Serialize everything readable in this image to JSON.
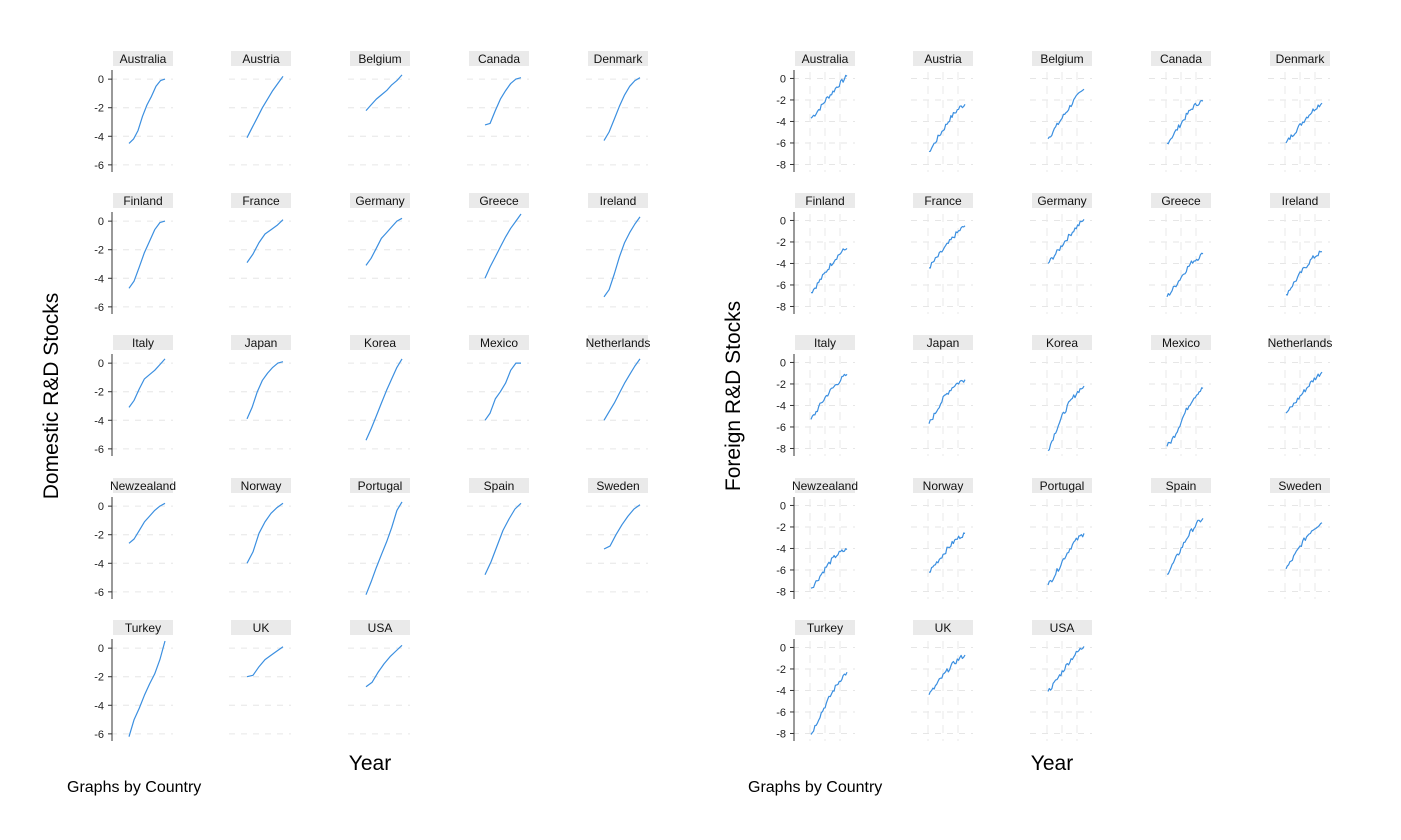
{
  "chart_data": [
    {
      "type": "line",
      "subplot_layout": "small multiples, 5 columns",
      "ylabel": "Domestic R&D Stocks",
      "xlabel": "Year",
      "note": "Graphs by Country",
      "ylim": [
        -6.5,
        0.5
      ],
      "yticks": [
        0,
        -2,
        -4,
        -6
      ],
      "grid": false,
      "line_color": "#3b8fe0",
      "shape": "smooth",
      "series": [
        {
          "name": "Australia",
          "values": [
            -4.5,
            -4.2,
            -3.6,
            -2.6,
            -1.8,
            -1.2,
            -0.5,
            -0.1,
            0.0
          ]
        },
        {
          "name": "Austria",
          "values": [
            -4.1,
            -3.4,
            -2.7,
            -2.0,
            -1.4,
            -0.8,
            -0.3,
            0.2
          ]
        },
        {
          "name": "Belgium",
          "values": [
            -2.2,
            -1.8,
            -1.4,
            -1.1,
            -0.8,
            -0.4,
            -0.1,
            0.3
          ]
        },
        {
          "name": "Canada",
          "values": [
            -3.2,
            -3.1,
            -2.2,
            -1.4,
            -0.8,
            -0.3,
            0.0,
            0.1
          ]
        },
        {
          "name": "Denmark",
          "values": [
            -4.3,
            -3.7,
            -2.8,
            -1.9,
            -1.1,
            -0.5,
            -0.1,
            0.1
          ]
        },
        {
          "name": "Finland",
          "values": [
            -4.7,
            -4.2,
            -3.2,
            -2.2,
            -1.4,
            -0.6,
            -0.1,
            0.0
          ]
        },
        {
          "name": "France",
          "values": [
            -2.9,
            -2.3,
            -1.5,
            -0.9,
            -0.6,
            -0.3,
            0.1
          ]
        },
        {
          "name": "Germany",
          "values": [
            -3.1,
            -2.6,
            -1.9,
            -1.2,
            -0.8,
            -0.4,
            0.0,
            0.2
          ]
        },
        {
          "name": "Greece",
          "values": [
            -4.0,
            -3.2,
            -2.5,
            -1.8,
            -1.1,
            -0.5,
            0.0,
            0.5
          ]
        },
        {
          "name": "Ireland",
          "values": [
            -5.3,
            -4.8,
            -3.7,
            -2.5,
            -1.5,
            -0.8,
            -0.2,
            0.3
          ]
        },
        {
          "name": "Italy",
          "values": [
            -3.1,
            -2.6,
            -1.8,
            -1.1,
            -0.8,
            -0.5,
            -0.1,
            0.3
          ]
        },
        {
          "name": "Japan",
          "values": [
            -3.9,
            -3.1,
            -2.0,
            -1.2,
            -0.7,
            -0.3,
            0.0,
            0.1
          ]
        },
        {
          "name": "Korea",
          "values": [
            -5.4,
            -4.6,
            -3.7,
            -2.8,
            -1.9,
            -1.1,
            -0.3,
            0.3
          ]
        },
        {
          "name": "Mexico",
          "values": [
            -4.0,
            -3.5,
            -2.5,
            -2.0,
            -1.4,
            -0.5,
            0.0,
            0.0
          ]
        },
        {
          "name": "Netherlands",
          "values": [
            -4.0,
            -3.4,
            -2.8,
            -2.1,
            -1.4,
            -0.8,
            -0.2,
            0.3
          ]
        },
        {
          "name": "Newzealand",
          "values": [
            -2.6,
            -2.3,
            -1.7,
            -1.1,
            -0.7,
            -0.3,
            0.0,
            0.2
          ]
        },
        {
          "name": "Norway",
          "values": [
            -4.0,
            -3.2,
            -1.9,
            -1.1,
            -0.5,
            -0.1,
            0.2
          ]
        },
        {
          "name": "Portugal",
          "values": [
            -6.2,
            -5.3,
            -4.3,
            -3.4,
            -2.5,
            -1.5,
            -0.3,
            0.3
          ]
        },
        {
          "name": "Spain",
          "values": [
            -4.8,
            -3.9,
            -2.8,
            -1.7,
            -0.9,
            -0.2,
            0.2
          ]
        },
        {
          "name": "Sweden",
          "values": [
            -3.0,
            -2.8,
            -2.0,
            -1.3,
            -0.7,
            -0.2,
            0.1
          ]
        },
        {
          "name": "Turkey",
          "values": [
            -6.2,
            -5.0,
            -4.2,
            -3.3,
            -2.5,
            -1.8,
            -0.8,
            0.5
          ]
        },
        {
          "name": "UK",
          "values": [
            -2.0,
            -1.9,
            -1.3,
            -0.8,
            -0.5,
            -0.2,
            0.1
          ]
        },
        {
          "name": "USA",
          "values": [
            -2.7,
            -2.4,
            -1.7,
            -1.1,
            -0.6,
            -0.2,
            0.2
          ]
        }
      ]
    },
    {
      "type": "line",
      "subplot_layout": "small multiples, 5 columns",
      "ylabel": "Foreign R&D Stocks",
      "xlabel": "Year",
      "note": "Graphs by Country",
      "ylim": [
        -8.7,
        0.6
      ],
      "yticks": [
        0,
        -2,
        -4,
        -6,
        -8
      ],
      "grid": true,
      "line_color": "#3b8fe0",
      "shape": "jagged",
      "series": [
        {
          "name": "Australia",
          "values": [
            -3.7,
            -3.2,
            -2.6,
            -1.9,
            -1.4,
            -0.8,
            -0.3,
            0.2
          ]
        },
        {
          "name": "Austria",
          "values": [
            -6.8,
            -6.1,
            -5.3,
            -4.6,
            -3.8,
            -3.2,
            -2.7,
            -2.4
          ]
        },
        {
          "name": "Belgium",
          "values": [
            -5.6,
            -4.9,
            -4.2,
            -3.5,
            -2.8,
            -2.1,
            -1.5,
            -1.0
          ]
        },
        {
          "name": "Canada",
          "values": [
            -6.0,
            -5.4,
            -4.7,
            -4.0,
            -3.3,
            -2.7,
            -2.3,
            -2.1
          ]
        },
        {
          "name": "Denmark",
          "values": [
            -6.0,
            -5.4,
            -4.8,
            -4.2,
            -3.6,
            -3.1,
            -2.6,
            -2.3
          ]
        },
        {
          "name": "Finland",
          "values": [
            -6.7,
            -6.1,
            -5.4,
            -4.7,
            -4.0,
            -3.4,
            -2.9,
            -2.6
          ]
        },
        {
          "name": "France",
          "values": [
            -4.4,
            -3.8,
            -3.2,
            -2.6,
            -2.0,
            -1.4,
            -0.9,
            -0.5
          ]
        },
        {
          "name": "Germany",
          "values": [
            -4.0,
            -3.4,
            -2.8,
            -2.1,
            -1.5,
            -0.9,
            -0.4,
            0.1
          ]
        },
        {
          "name": "Greece",
          "values": [
            -7.1,
            -6.5,
            -5.8,
            -5.1,
            -4.4,
            -3.8,
            -3.5,
            -3.1
          ]
        },
        {
          "name": "Ireland",
          "values": [
            -6.9,
            -6.2,
            -5.5,
            -4.8,
            -4.2,
            -3.6,
            -3.2,
            -2.9
          ]
        },
        {
          "name": "Italy",
          "values": [
            -5.3,
            -4.6,
            -3.8,
            -3.1,
            -2.5,
            -2.0,
            -1.5,
            -1.1
          ]
        },
        {
          "name": "Japan",
          "values": [
            -5.7,
            -4.9,
            -4.0,
            -3.2,
            -2.6,
            -2.1,
            -1.8,
            -1.6
          ]
        },
        {
          "name": "Korea",
          "values": [
            -8.2,
            -7.0,
            -5.8,
            -4.8,
            -3.9,
            -3.2,
            -2.6,
            -2.2
          ]
        },
        {
          "name": "Mexico",
          "values": [
            -7.8,
            -7.2,
            -6.3,
            -5.2,
            -4.2,
            -3.4,
            -2.8,
            -2.4
          ]
        },
        {
          "name": "Netherlands",
          "values": [
            -4.7,
            -4.2,
            -3.6,
            -3.0,
            -2.4,
            -1.8,
            -1.3,
            -0.9
          ]
        },
        {
          "name": "Newzealand",
          "values": [
            -7.7,
            -7.1,
            -6.4,
            -5.7,
            -5.1,
            -4.6,
            -4.3,
            -4.1
          ]
        },
        {
          "name": "Norway",
          "values": [
            -6.2,
            -5.6,
            -5.0,
            -4.4,
            -3.8,
            -3.3,
            -2.9,
            -2.6
          ]
        },
        {
          "name": "Portugal",
          "values": [
            -7.4,
            -6.7,
            -5.9,
            -5.0,
            -4.2,
            -3.5,
            -3.0,
            -2.6
          ]
        },
        {
          "name": "Spain",
          "values": [
            -6.4,
            -5.6,
            -4.7,
            -3.8,
            -2.9,
            -2.2,
            -1.6,
            -1.2
          ]
        },
        {
          "name": "Sweden",
          "values": [
            -5.9,
            -5.2,
            -4.4,
            -3.6,
            -2.9,
            -2.3,
            -1.9,
            -1.6
          ]
        },
        {
          "name": "Turkey",
          "values": [
            -8.1,
            -7.1,
            -6.1,
            -5.2,
            -4.3,
            -3.5,
            -2.8,
            -2.3
          ]
        },
        {
          "name": "UK",
          "values": [
            -4.4,
            -3.8,
            -3.1,
            -2.5,
            -1.9,
            -1.4,
            -1.0,
            -0.7
          ]
        },
        {
          "name": "USA",
          "values": [
            -4.1,
            -3.5,
            -2.8,
            -2.1,
            -1.4,
            -0.8,
            -0.3,
            0.1
          ]
        }
      ]
    }
  ]
}
